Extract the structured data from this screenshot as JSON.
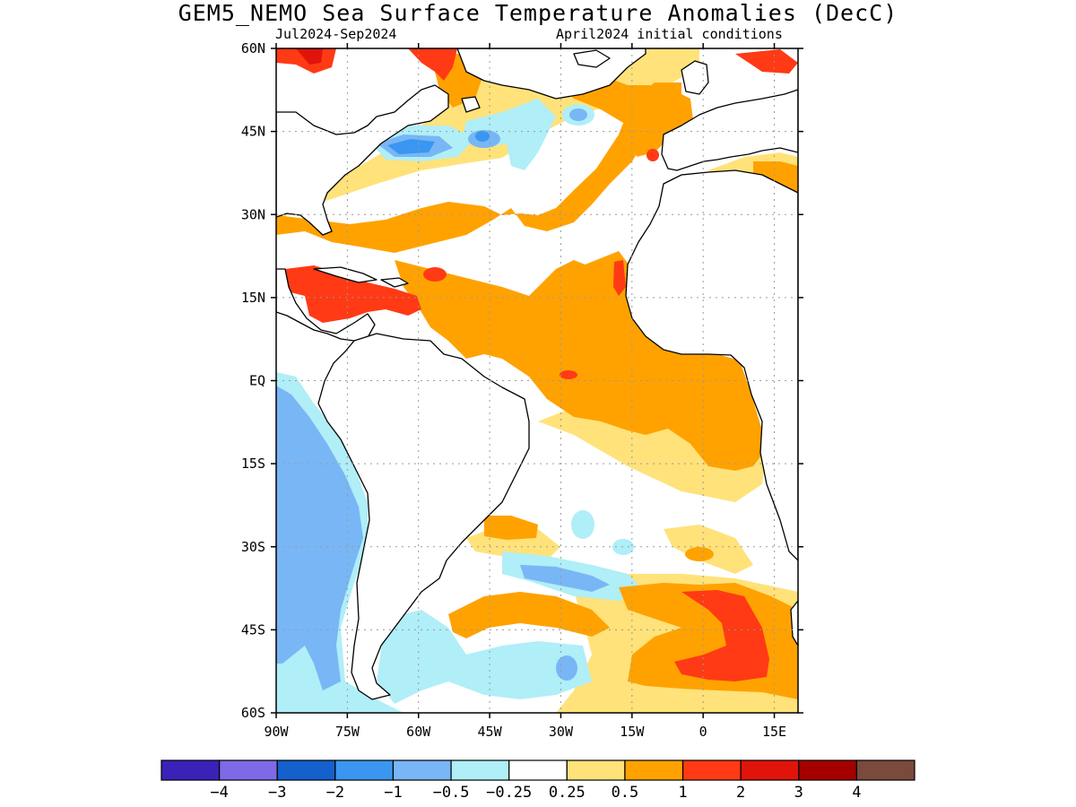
{
  "title": "GEM5_NEMO Sea Surface Temperature Anomalies (DecC)",
  "subtitle_left": "Jul2024-Sep2024",
  "subtitle_right": "April2024 initial conditions",
  "map": {
    "extent": {
      "lon_min": -90,
      "lon_max": 20,
      "lat_min": -60,
      "lat_max": 60
    },
    "lat_ticks": [
      {
        "value": 60,
        "label": "60N"
      },
      {
        "value": 45,
        "label": "45N"
      },
      {
        "value": 30,
        "label": "30N"
      },
      {
        "value": 15,
        "label": "15N"
      },
      {
        "value": 0,
        "label": "EQ"
      },
      {
        "value": -15,
        "label": "15S"
      },
      {
        "value": -30,
        "label": "30S"
      },
      {
        "value": -45,
        "label": "45S"
      },
      {
        "value": -60,
        "label": "60S"
      }
    ],
    "lon_ticks": [
      {
        "value": -90,
        "label": "90W"
      },
      {
        "value": -75,
        "label": "75W"
      },
      {
        "value": -60,
        "label": "60W"
      },
      {
        "value": -45,
        "label": "45W"
      },
      {
        "value": -30,
        "label": "30W"
      },
      {
        "value": -15,
        "label": "15W"
      },
      {
        "value": 0,
        "label": "0"
      },
      {
        "value": 15,
        "label": "15E"
      }
    ],
    "gridlines": "dotted"
  },
  "colorbar": {
    "colors": [
      "#3a22b8",
      "#7e6ae6",
      "#1460cc",
      "#3a96f0",
      "#78b6f5",
      "#b0eef8",
      "#ffffff",
      "#ffe27a",
      "#ffa200",
      "#ff3a14",
      "#e0140a",
      "#a50000",
      "#7a4a3c"
    ],
    "labels": [
      "-4",
      "-3",
      "-2",
      "-1",
      "-0.5",
      "-0.25",
      "0.25",
      "0.5",
      "1",
      "2",
      "3",
      "4"
    ]
  },
  "colors": {
    "land": "#ffffff",
    "coast": "#000000",
    "cat_m1": "#3a96f0",
    "cat_m05": "#78b6f5",
    "cat_m025": "#b0eef8",
    "cat_p025": "#ffe27a",
    "cat_p05": "#ffa200",
    "cat_p1": "#ff3a14",
    "cat_p2": "#e0140a"
  }
}
